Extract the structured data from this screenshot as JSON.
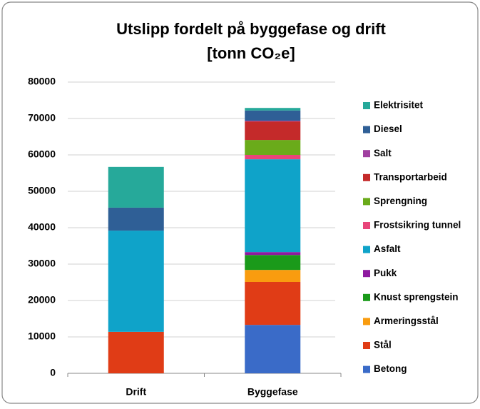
{
  "chart_data": {
    "type": "stacked-bar",
    "title": "Utslipp fordelt på byggefase og drift",
    "subtitle": "[tonn CO₂e]",
    "categories": [
      "Drift",
      "Byggefase"
    ],
    "series": [
      {
        "name": "Betong",
        "color": "#3a6bc8",
        "values": [
          0,
          13300
        ]
      },
      {
        "name": "Stål",
        "color": "#e03c16",
        "values": [
          11400,
          11800
        ]
      },
      {
        "name": "Armeringsstål",
        "color": "#f99c0f",
        "values": [
          0,
          3300
        ]
      },
      {
        "name": "Knust sprengstein",
        "color": "#1a9a1a",
        "values": [
          0,
          4100
        ]
      },
      {
        "name": "Pukk",
        "color": "#8e1aa0",
        "values": [
          0,
          800
        ]
      },
      {
        "name": "Asfalt",
        "color": "#0fa3c9",
        "values": [
          27800,
          25500
        ]
      },
      {
        "name": "Frostsikring tunnel",
        "color": "#e8457a",
        "values": [
          0,
          1200
        ]
      },
      {
        "name": "Sprengning",
        "color": "#6aab1a",
        "values": [
          0,
          4100
        ]
      },
      {
        "name": "Transportarbeid",
        "color": "#c42a2a",
        "values": [
          0,
          5100
        ]
      },
      {
        "name": "Salt",
        "color": "#a040a0",
        "values": [
          0,
          200
        ]
      },
      {
        "name": "Diesel",
        "color": "#2f5f96",
        "values": [
          6300,
          2800
        ]
      },
      {
        "name": "Elektrisitet",
        "color": "#26a99a",
        "values": [
          11200,
          700
        ]
      }
    ],
    "ylim": [
      0,
      80000
    ],
    "yticks": [
      0,
      10000,
      20000,
      30000,
      40000,
      50000,
      60000,
      70000,
      80000
    ],
    "grid": true,
    "legend": "right"
  }
}
